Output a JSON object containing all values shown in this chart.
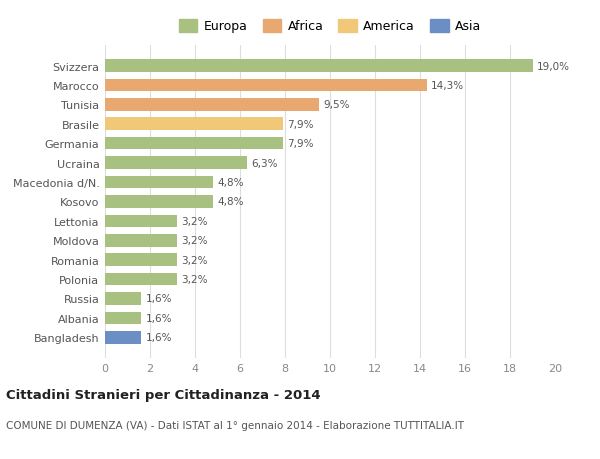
{
  "categories": [
    "Bangladesh",
    "Albania",
    "Russia",
    "Polonia",
    "Romania",
    "Moldova",
    "Lettonia",
    "Kosovo",
    "Macedonia d/N.",
    "Ucraina",
    "Germania",
    "Brasile",
    "Tunisia",
    "Marocco",
    "Svizzera"
  ],
  "values": [
    1.6,
    1.6,
    1.6,
    3.2,
    3.2,
    3.2,
    3.2,
    4.8,
    4.8,
    6.3,
    7.9,
    7.9,
    9.5,
    14.3,
    19.0
  ],
  "colors": [
    "#6b8ec4",
    "#a8c080",
    "#a8c080",
    "#a8c080",
    "#a8c080",
    "#a8c080",
    "#a8c080",
    "#a8c080",
    "#a8c080",
    "#a8c080",
    "#a8c080",
    "#f0c878",
    "#e8a870",
    "#e8a870",
    "#a8c080"
  ],
  "bar_labels": [
    "1,6%",
    "1,6%",
    "1,6%",
    "3,2%",
    "3,2%",
    "3,2%",
    "3,2%",
    "4,8%",
    "4,8%",
    "6,3%",
    "7,9%",
    "7,9%",
    "9,5%",
    "14,3%",
    "19,0%"
  ],
  "legend_labels": [
    "Europa",
    "Africa",
    "America",
    "Asia"
  ],
  "legend_colors": [
    "#a8c080",
    "#e8a870",
    "#f0c878",
    "#6b8ec4"
  ],
  "title": "Cittadini Stranieri per Cittadinanza - 2014",
  "subtitle": "COMUNE DI DUMENZA (VA) - Dati ISTAT al 1° gennaio 2014 - Elaborazione TUTTITALIA.IT",
  "xlim": [
    0,
    20
  ],
  "xticks": [
    0,
    2,
    4,
    6,
    8,
    10,
    12,
    14,
    16,
    18,
    20
  ],
  "background_color": "#ffffff",
  "grid_color": "#dddddd"
}
